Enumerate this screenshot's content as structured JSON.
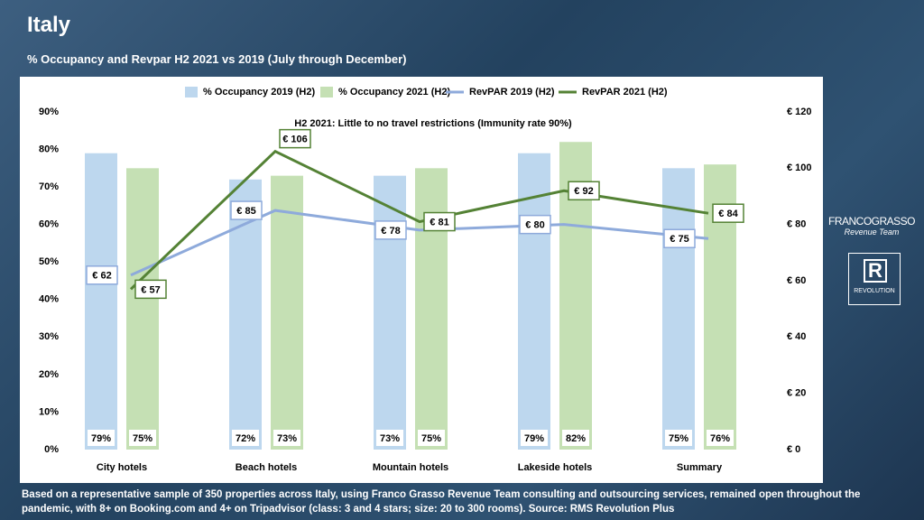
{
  "title": "Italy",
  "subtitle": "% Occupancy and Revpar H2 2021 vs 2019 (July through December)",
  "footnote": "Based on a representative sample of 350 properties across Italy, using Franco Grasso Revenue Team consulting and outsourcing services, remained open throughout the pandemic, with 8+ on Booking.com and 4+ on Tripadvisor (class: 3 and 4 stars; size: 20 to 300 rooms). Source: RMS Revolution Plus",
  "logos": [
    "FRANCOGRASSO",
    "Revenue Team",
    "R",
    "REVOLUTION"
  ],
  "chart_data": {
    "type": "bar",
    "annotation": "H2 2021: Little to no travel restrictions (Immunity rate 90%)",
    "categories": [
      "City hotels",
      "Beach hotels",
      "Mountain hotels",
      "Lakeside hotels",
      "Summary"
    ],
    "series": [
      {
        "name": "% Occupancy 2019 (H2)",
        "type": "bar",
        "color": "#bdd7ee",
        "values": [
          79,
          72,
          73,
          79,
          75
        ],
        "value_labels": [
          "79%",
          "72%",
          "73%",
          "79%",
          "75%"
        ]
      },
      {
        "name": "% Occupancy 2021 (H2)",
        "type": "bar",
        "color": "#c5e0b4",
        "values": [
          75,
          73,
          75,
          82,
          76
        ],
        "value_labels": [
          "75%",
          "73%",
          "75%",
          "82%",
          "76%"
        ]
      },
      {
        "name": "RevPAR 2019 (H2)",
        "type": "line",
        "axis": "y2",
        "color": "#8eaadb",
        "values": [
          62,
          85,
          78,
          80,
          75
        ],
        "value_labels": [
          "€ 62",
          "€ 85",
          "€ 78",
          "€ 80",
          "€ 75"
        ]
      },
      {
        "name": "RevPAR 2021 (H2)",
        "type": "line",
        "axis": "y2",
        "color": "#548235",
        "values": [
          57,
          106,
          81,
          92,
          84
        ],
        "value_labels": [
          "€ 57",
          "€ 106",
          "€ 81",
          "€ 92",
          "€ 84"
        ]
      }
    ],
    "ylim": [
      0,
      90
    ],
    "yticks": [
      {
        "value": 0,
        "label": "0%"
      },
      {
        "value": 10,
        "label": "10%"
      },
      {
        "value": 20,
        "label": "20%"
      },
      {
        "value": 30,
        "label": "30%"
      },
      {
        "value": 40,
        "label": "40%"
      },
      {
        "value": 50,
        "label": "50%"
      },
      {
        "value": 60,
        "label": "60%"
      },
      {
        "value": 70,
        "label": "70%"
      },
      {
        "value": 80,
        "label": "80%"
      },
      {
        "value": 90,
        "label": "90%"
      }
    ],
    "y2lim": [
      0,
      120
    ],
    "y2ticks": [
      {
        "value": 0,
        "label": "€ 0"
      },
      {
        "value": 20,
        "label": "€ 20"
      },
      {
        "value": 40,
        "label": "€ 40"
      },
      {
        "value": 60,
        "label": "€ 60"
      },
      {
        "value": 80,
        "label": "€ 80"
      },
      {
        "value": 100,
        "label": "€ 100"
      },
      {
        "value": 120,
        "label": "€ 120"
      }
    ]
  }
}
